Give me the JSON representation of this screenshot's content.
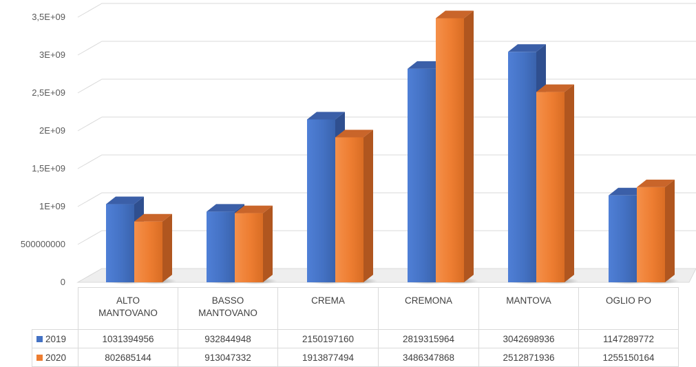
{
  "chart_data": {
    "type": "bar",
    "categories": [
      "ALTO MANTOVANO",
      "BASSO MANTOVANO",
      "CREMA",
      "CREMONA",
      "MANTOVA",
      "OGLIO PO"
    ],
    "category_lines": [
      [
        "ALTO",
        "MANTOVANO"
      ],
      [
        "BASSO",
        "MANTOVANO"
      ],
      [
        "CREMA"
      ],
      [
        "CREMONA"
      ],
      [
        "MANTOVA"
      ],
      [
        "OGLIO PO"
      ]
    ],
    "series": [
      {
        "name": "2019",
        "color": "#4472c4",
        "values": [
          1031394956,
          932844948,
          2150197160,
          2819315964,
          3042698936,
          1147289772
        ]
      },
      {
        "name": "2020",
        "color": "#ed7d31",
        "values": [
          802685144,
          913047332,
          1913877494,
          3486347868,
          2512871936,
          1255150164
        ]
      }
    ],
    "y_ticks": [
      {
        "value": 0,
        "label": "0"
      },
      {
        "value": 500000000,
        "label": "500000000"
      },
      {
        "value": 1000000000,
        "label": "1E+09"
      },
      {
        "value": 1500000000,
        "label": "1,5E+09"
      },
      {
        "value": 2000000000,
        "label": "2E+09"
      },
      {
        "value": 2500000000,
        "label": "2,5E+09"
      },
      {
        "value": 3000000000,
        "label": "3E+09"
      },
      {
        "value": 3500000000,
        "label": "3,5E+09"
      }
    ],
    "ylim": [
      0,
      3500000000
    ],
    "grid": true,
    "style": "3d-column-with-data-table",
    "table": {
      "rows": [
        {
          "series": "2019",
          "cells": [
            "1031394956",
            "932844948",
            "2150197160",
            "2819315964",
            "3042698936",
            "1147289772"
          ]
        },
        {
          "series": "2020",
          "cells": [
            "802685144",
            "913047332",
            "1913877494",
            "3486347868",
            "2512871936",
            "1255150164"
          ]
        }
      ]
    }
  }
}
